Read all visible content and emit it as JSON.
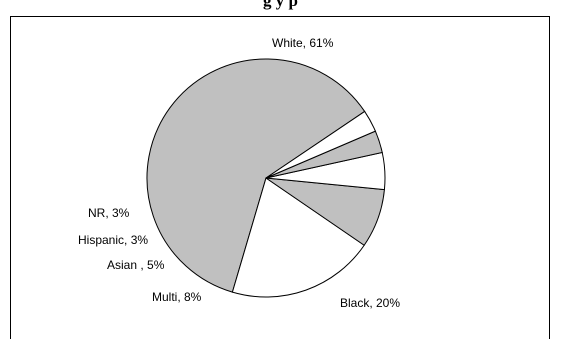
{
  "chart_data": {
    "type": "pie",
    "title": "g        y           p",
    "slices": [
      {
        "label": "White, 61%",
        "value": 61,
        "color": "#c0c0c0"
      },
      {
        "label": "Black, 20%",
        "value": 20,
        "color": "#ffffff"
      },
      {
        "label": "Multi, 8%",
        "value": 8,
        "color": "#c0c0c0"
      },
      {
        "label": "Asian , 5%",
        "value": 5,
        "color": "#ffffff"
      },
      {
        "label": "Hispanic, 3%",
        "value": 3,
        "color": "#c0c0c0"
      },
      {
        "label": "NR, 3%",
        "value": 3,
        "color": "#ffffff"
      }
    ],
    "stroke_color": "#000000",
    "legend": "none"
  }
}
